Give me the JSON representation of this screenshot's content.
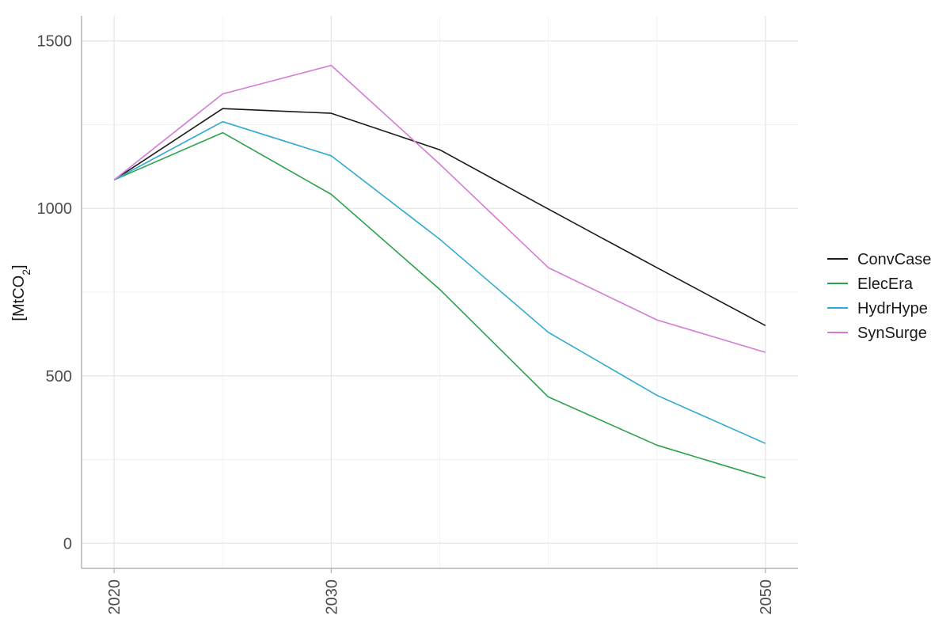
{
  "chart_data": {
    "type": "line",
    "title": "",
    "xlabel": "",
    "ylabel": "[MtCO",
    "ylabel_subscript": "2",
    "ylabel_suffix": "]",
    "x": [
      2020,
      2025,
      2030,
      2035,
      2040,
      2045,
      2050
    ],
    "xlim": [
      2018.5,
      2051.5
    ],
    "ylim": [
      -75,
      1575
    ],
    "x_ticks": [
      2020,
      2030,
      2050
    ],
    "x_tick_labels": [
      "2020",
      "2030",
      "2050"
    ],
    "y_ticks": [
      0,
      500,
      1000,
      1500
    ],
    "y_tick_labels": [
      "0",
      "500",
      "1000",
      "1500"
    ],
    "y_minor_ticks": [
      250,
      750,
      1250
    ],
    "x_minor_ticks": [
      2025,
      2035,
      2040,
      2045
    ],
    "grid": true,
    "legend_position": "right",
    "series": [
      {
        "name": "ConvCase",
        "color": "#1a1a1a",
        "values": [
          1085,
          1298,
          1284,
          1175,
          998,
          823,
          650
        ]
      },
      {
        "name": "ElecEra",
        "color": "#2ca24d",
        "values": [
          1085,
          1226,
          1042,
          758,
          437,
          293,
          195
        ]
      },
      {
        "name": "HydrHype",
        "color": "#2eaad2",
        "values": [
          1085,
          1259,
          1157,
          908,
          630,
          442,
          298
        ]
      },
      {
        "name": "SynSurge",
        "color": "#d57ad6",
        "values": [
          1085,
          1342,
          1427,
          1132,
          823,
          667,
          570
        ]
      }
    ]
  }
}
